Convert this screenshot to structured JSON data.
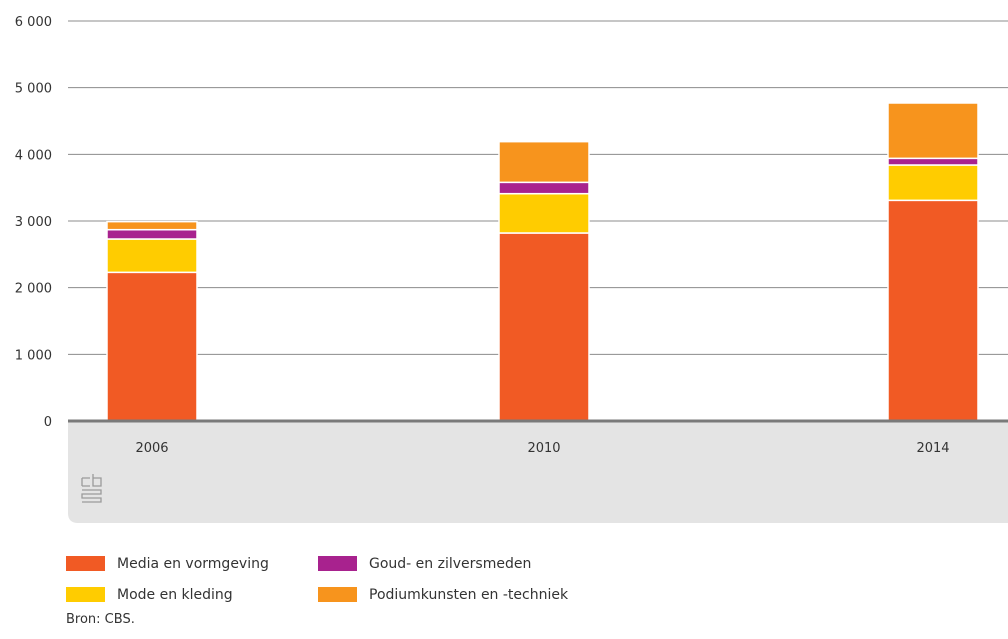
{
  "chart_data": {
    "type": "bar",
    "stacked": true,
    "categories": [
      "2006",
      "2010",
      "2014"
    ],
    "series": [
      {
        "name": "Media en vormgeving",
        "color": "#f15a24",
        "values": [
          2230,
          2820,
          3310
        ]
      },
      {
        "name": "Mode en kleding",
        "color": "#ffcc00",
        "values": [
          500,
          590,
          530
        ]
      },
      {
        "name": "Goud- en zilversmeden",
        "color": "#a8228e",
        "values": [
          140,
          170,
          100
        ]
      },
      {
        "name": "Podiumkunsten en -techniek",
        "color": "#f7941d",
        "values": [
          120,
          610,
          830
        ]
      }
    ],
    "ylim": [
      0,
      6000
    ],
    "yticks": [
      0,
      1000,
      2000,
      3000,
      4000,
      5000,
      6000
    ],
    "ytick_labels": [
      "0",
      "1 000",
      "2 000",
      "3 000",
      "4 000",
      "5 000",
      "6 000"
    ],
    "grid": true,
    "legend_position": "bottom"
  },
  "source_text": "Bron: CBS."
}
